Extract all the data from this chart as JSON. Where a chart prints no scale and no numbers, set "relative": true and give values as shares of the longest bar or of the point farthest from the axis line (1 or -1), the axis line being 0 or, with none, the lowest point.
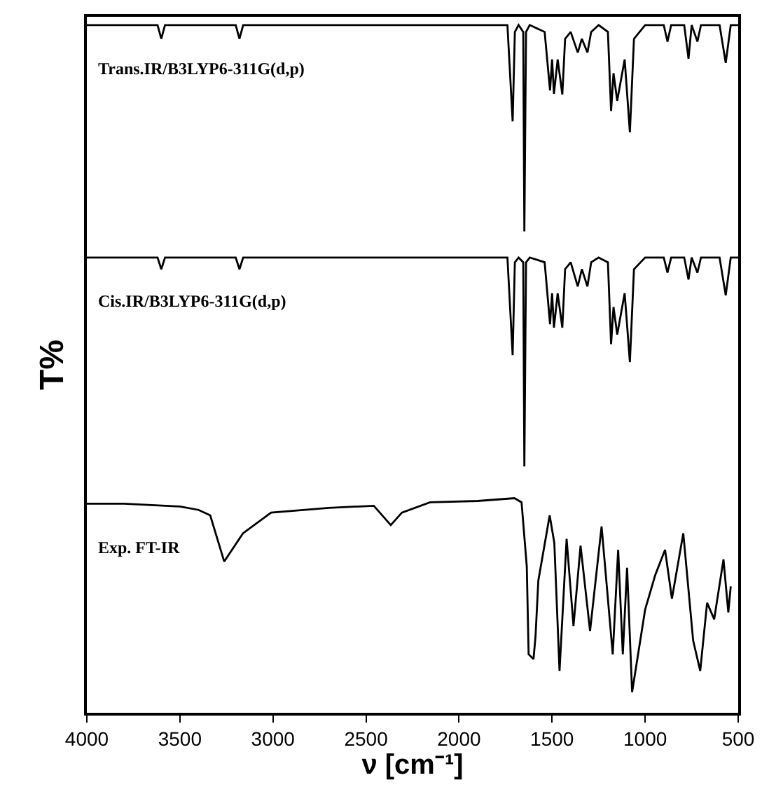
{
  "chart_data": {
    "type": "line",
    "relative": true,
    "xlabel": "ν [cm⁻¹]",
    "ylabel": "T%",
    "xlim": [
      4000,
      500
    ],
    "xticks": [
      4000,
      3500,
      3000,
      2500,
      2000,
      1500,
      1000,
      500
    ],
    "legend": false,
    "marker": "none",
    "line_style": "solid",
    "series": [
      {
        "name": "Trans.IR/B3LYP6-311G(d,p)",
        "color": "#000000",
        "x": [
          4000,
          3620,
          3600,
          3580,
          3200,
          3180,
          3160,
          1740,
          1712,
          1700,
          1680,
          1655,
          1649,
          1640,
          1620,
          1540,
          1511,
          1500,
          1490,
          1470,
          1445,
          1430,
          1400,
          1362,
          1340,
          1310,
          1290,
          1250,
          1200,
          1183,
          1170,
          1150,
          1110,
          1082,
          1060,
          1000,
          900,
          880,
          860,
          790,
          767,
          750,
          719,
          700,
          600,
          567,
          540,
          500
        ],
        "values": [
          1,
          1,
          0.98,
          1,
          1,
          0.98,
          1,
          1,
          0.86,
          0.99,
          1,
          0.99,
          0.7,
          0.99,
          1,
          0.99,
          0.905,
          0.95,
          0.9,
          0.95,
          0.899,
          0.98,
          0.99,
          0.96,
          0.98,
          0.96,
          0.99,
          1,
          0.99,
          0.875,
          0.93,
          0.89,
          0.95,
          0.844,
          0.98,
          1,
          1,
          0.976,
          1,
          1,
          0.951,
          1,
          0.976,
          1,
          1,
          0.945,
          1,
          1
        ]
      },
      {
        "name": "Cis.IR/B3LYP6-311G(d,p)",
        "color": "#000000",
        "x": [
          4000,
          3620,
          3600,
          3580,
          3200,
          3180,
          3160,
          1740,
          1712,
          1700,
          1680,
          1655,
          1649,
          1640,
          1620,
          1540,
          1511,
          1500,
          1490,
          1470,
          1445,
          1430,
          1400,
          1362,
          1340,
          1310,
          1290,
          1250,
          1200,
          1183,
          1170,
          1150,
          1110,
          1082,
          1060,
          1000,
          900,
          880,
          860,
          790,
          767,
          750,
          719,
          700,
          600,
          567,
          540,
          500
        ],
        "values": [
          0.662,
          0.662,
          0.645,
          0.662,
          0.662,
          0.645,
          0.662,
          0.662,
          0.52,
          0.655,
          0.662,
          0.655,
          0.358,
          0.655,
          0.662,
          0.655,
          0.565,
          0.61,
          0.56,
          0.61,
          0.56,
          0.645,
          0.655,
          0.62,
          0.645,
          0.62,
          0.655,
          0.662,
          0.655,
          0.536,
          0.59,
          0.55,
          0.61,
          0.51,
          0.645,
          0.662,
          0.662,
          0.64,
          0.662,
          0.662,
          0.63,
          0.662,
          0.64,
          0.662,
          0.662,
          0.607,
          0.662,
          0.662
        ]
      },
      {
        "name": "Exp. FT-IR",
        "color": "#000000",
        "x": [
          4000,
          3800,
          3500,
          3400,
          3337,
          3262,
          3161,
          3010,
          2700,
          2458,
          2367,
          2307,
          2156,
          1900,
          1702,
          1664,
          1636,
          1626,
          1600,
          1589,
          1574,
          1513,
          1488,
          1460,
          1422,
          1385,
          1347,
          1296,
          1234,
          1174,
          1145,
          1120,
          1097,
          1070,
          1000,
          946,
          893,
          856,
          795,
          742,
          704,
          667,
          629,
          579,
          553,
          540
        ],
        "values": [
          0.304,
          0.304,
          0.3,
          0.295,
          0.287,
          0.22,
          0.261,
          0.291,
          0.298,
          0.301,
          0.273,
          0.291,
          0.306,
          0.308,
          0.312,
          0.306,
          0.213,
          0.085,
          0.078,
          0.111,
          0.192,
          0.287,
          0.247,
          0.061,
          0.253,
          0.126,
          0.243,
          0.119,
          0.271,
          0.085,
          0.237,
          0.085,
          0.211,
          0.03,
          0.15,
          0.2,
          0.237,
          0.166,
          0.261,
          0.105,
          0.061,
          0.16,
          0.136,
          0.223,
          0.146,
          0.184
        ]
      }
    ]
  }
}
